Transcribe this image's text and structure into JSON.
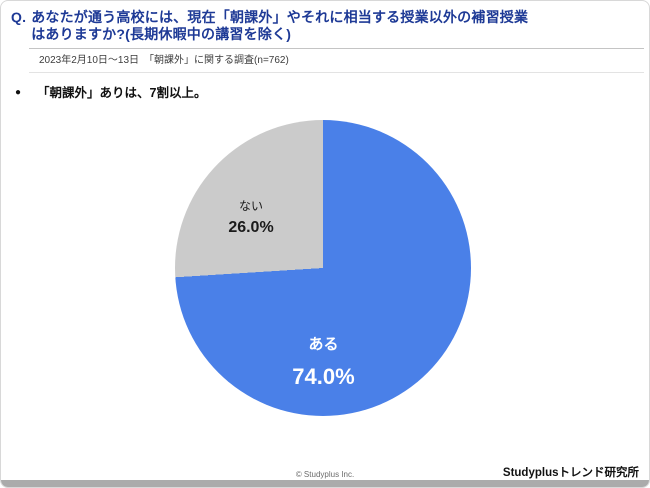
{
  "header": {
    "title_q": "Q.",
    "title_line1": "あなたが通う高校には、現在「朝課外」やそれに相当する授業以外の補習授業",
    "title_line2": "はありますか?(長期休暇中の講習を除く)",
    "subtitle": "2023年2月10日〜13日　「朝課外」に関する調査(n=762)"
  },
  "finding": {
    "bullet": "●",
    "text": "「朝課外」ありは、7割以上。"
  },
  "chart_data": {
    "type": "pie",
    "categories": [
      "ある",
      "ない"
    ],
    "values": [
      74.0,
      26.0
    ],
    "start_angle_deg": 0,
    "direction": "clockwise",
    "slices": [
      {
        "label": "ある",
        "value": 74.0,
        "display": "74.0%",
        "color": "#4a80e8",
        "text_color": "#ffffff"
      },
      {
        "label": "ない",
        "value": 26.0,
        "display": "26.0%",
        "color": "#cbcbcb",
        "text_color": "#1a1a1a"
      }
    ],
    "legend": "none",
    "labels_inside": true
  },
  "footer": {
    "copyright": "© Studyplus Inc.",
    "brand": "Studyplusトレンド研究所"
  }
}
